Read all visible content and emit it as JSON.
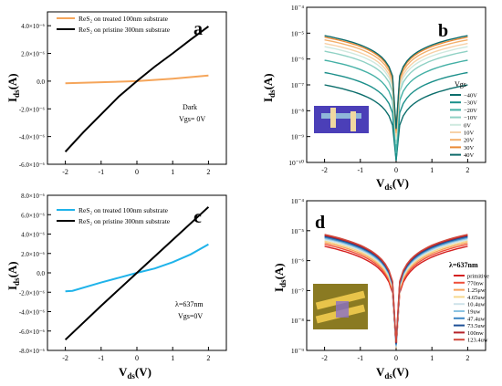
{
  "colors": {
    "orange": "#f5a55a",
    "black": "#000000",
    "blue": "#1fb3ea"
  },
  "chart_data": [
    {
      "panel": "a",
      "type": "line",
      "ylabel": "Ids(A)",
      "xticks": [
        "-2",
        "-1",
        "0",
        "1",
        "2"
      ],
      "yticks": [
        "4.0×10⁻⁶",
        "2.0×10⁻⁶",
        "0.0",
        "-2.0×10⁻⁶",
        "-4.0×10⁻⁶",
        "-6.0×10⁻⁶"
      ],
      "ylim": [
        -6e-06,
        5e-06
      ],
      "xlim": [
        -2.5,
        2.5
      ],
      "annotation": [
        "Dark",
        "Vgs= 0V"
      ],
      "series": [
        {
          "name": "ReS₂ on treated 100nm substrate",
          "color": "#f5a55a",
          "x": [
            -2,
            -1,
            0,
            1,
            2
          ],
          "y": [
            -1.5e-07,
            -8e-08,
            0,
            1.8e-07,
            4e-07
          ]
        },
        {
          "name": "ReS₂ on pristine 300nm substrate",
          "color": "#000000",
          "x": [
            -2,
            -1.5,
            -1,
            -0.5,
            0,
            0.5,
            1,
            1.5,
            2
          ],
          "y": [
            -5.1e-06,
            -3.7e-06,
            -2.4e-06,
            -1.1e-06,
            0,
            1.05e-06,
            2e-06,
            3e-06,
            3.95e-06
          ]
        }
      ]
    },
    {
      "panel": "b",
      "type": "line",
      "yscale": "log",
      "xlabel": "Vds(V)",
      "ylabel": "Ids(A)",
      "xticks": [
        "-2",
        "-1",
        "0",
        "1",
        "2"
      ],
      "yticks": [
        "10⁻⁴",
        "10⁻⁵",
        "10⁻⁶",
        "10⁻⁷",
        "10⁻⁸",
        "10⁻⁹",
        "10⁻¹⁰"
      ],
      "ylim": [
        1e-10,
        0.0001
      ],
      "xlim": [
        -2.5,
        2.5
      ],
      "legend_title": "Vgs",
      "series": [
        {
          "name": "−40V",
          "color": "#0c6e6c",
          "y_at_2V": 1e-07
        },
        {
          "name": "−30V",
          "color": "#1b8f8a",
          "y_at_2V": 3e-07
        },
        {
          "name": "−20V",
          "color": "#43b0a5",
          "y_at_2V": 9e-07
        },
        {
          "name": "−10V",
          "color": "#8fd1c4",
          "y_at_2V": 2e-06
        },
        {
          "name": "0V",
          "color": "#cfe9df",
          "y_at_2V": 3e-06
        },
        {
          "name": "10V",
          "color": "#f7d2a8",
          "y_at_2V": 4e-06
        },
        {
          "name": "20V",
          "color": "#f3b06c",
          "y_at_2V": 5.5e-06
        },
        {
          "name": "30V",
          "color": "#ea8a35",
          "y_at_2V": 7e-06
        },
        {
          "name": "40V",
          "color": "#0e6a6a",
          "y_at_2V": 8e-06
        }
      ]
    },
    {
      "panel": "c",
      "type": "line",
      "xlabel": "Vds(V)",
      "ylabel": "Ids(A)",
      "xticks": [
        "-2",
        "-1",
        "0",
        "1",
        "2"
      ],
      "yticks": [
        "8.0×10⁻⁶",
        "6.0×10⁻⁶",
        "4.0×10⁻⁶",
        "2.0×10⁻⁶",
        "0.0",
        "-2.0×10⁻⁶",
        "-4.0×10⁻⁶",
        "-6.0×10⁻⁶",
        "-8.0×10⁻⁶"
      ],
      "ylim": [
        -8e-06,
        8e-06
      ],
      "xlim": [
        -2.5,
        2.5
      ],
      "annotation": [
        "λ=637nm",
        "Vgs=0V"
      ],
      "series": [
        {
          "name": "ReS₂ on treated 100nm substrate",
          "color": "#1fb3ea",
          "x": [
            -2,
            -1.8,
            -1,
            -0.5,
            0,
            0.5,
            1,
            1.5,
            2
          ],
          "y": [
            -1.9e-06,
            -1.85e-06,
            -1e-06,
            -5e-07,
            0,
            4.5e-07,
            1.1e-06,
            1.9e-06,
            2.95e-06
          ]
        },
        {
          "name": "ReS₂ on pristine 300nm substrate",
          "color": "#000000",
          "x": [
            -2,
            -1,
            0,
            1,
            2
          ],
          "y": [
            -6.9e-06,
            -3.4e-06,
            0,
            3.4e-06,
            6.8e-06
          ]
        }
      ]
    },
    {
      "panel": "d",
      "type": "line",
      "yscale": "log",
      "xlabel": "Vds(V)",
      "ylabel": "Ids(A)",
      "xticks": [
        "-2",
        "-1",
        "0",
        "1",
        "2"
      ],
      "yticks": [
        "10⁻⁴",
        "10⁻⁵",
        "10⁻⁶",
        "10⁻⁷",
        "10⁻⁸",
        "10⁻⁹"
      ],
      "ylim": [
        1e-09,
        0.0001
      ],
      "xlim": [
        -2.5,
        2.5
      ],
      "legend_title": "λ=637nm",
      "series": [
        {
          "name": "primitive",
          "color": "#d42020",
          "y_at_2V": 3e-06
        },
        {
          "name": "770nw",
          "color": "#ee4e3a",
          "y_at_2V": 3.5e-06
        },
        {
          "name": "1.25μw",
          "color": "#f7a15a",
          "y_at_2V": 4e-06
        },
        {
          "name": "4.65uw",
          "color": "#f6d88e",
          "y_at_2V": 4.5e-06
        },
        {
          "name": "10.4uw",
          "color": "#cfe3ea",
          "y_at_2V": 5e-06
        },
        {
          "name": "19uw",
          "color": "#8cc4e2",
          "y_at_2V": 5.5e-06
        },
        {
          "name": "47.4uw",
          "color": "#3c86c4",
          "y_at_2V": 6e-06
        },
        {
          "name": "73.5uw",
          "color": "#1d4f96",
          "y_at_2V": 6.5e-06
        },
        {
          "name": "100nw",
          "color": "#b5232a",
          "y_at_2V": 7e-06
        },
        {
          "name": "123.4uw",
          "color": "#d04a3e",
          "y_at_2V": 7.5e-06
        }
      ]
    }
  ]
}
